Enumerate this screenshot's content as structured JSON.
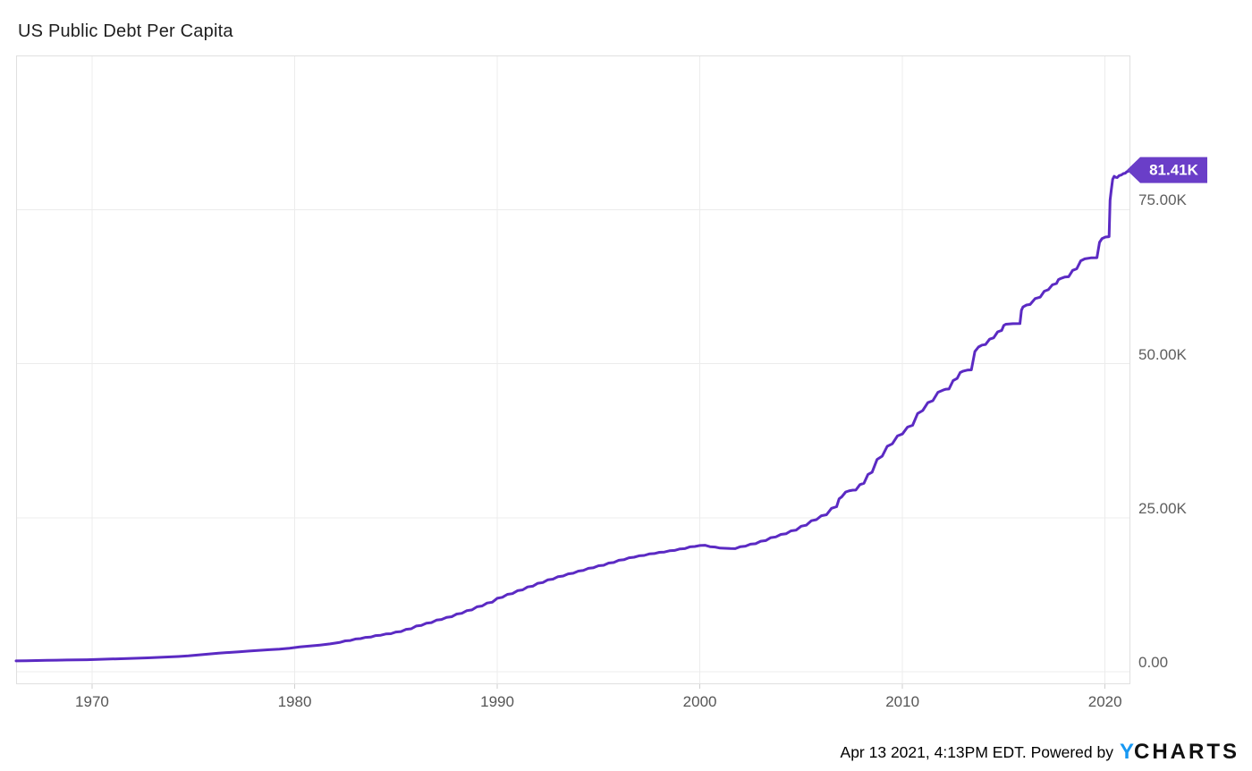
{
  "page": {
    "title": "US Public Debt Per Capita"
  },
  "footer": {
    "timestamp_text": "Apr 13 2021, 4:13PM EDT. Powered by",
    "logo": {
      "y": "Y",
      "charts": "CHARTS"
    }
  },
  "colors": {
    "line": "#5b2ac3",
    "badge": "#6a3ec8",
    "badge_text": "#ffffff",
    "logo_blue": "#1898f2",
    "grid": "#ececec",
    "axis_border": "#e0e0e0",
    "tick_mark": "#cfcfcf",
    "title_text": "#1f1f1f",
    "axis_text": "#5e5e5e"
  },
  "chart_data": {
    "type": "line",
    "title": "US Public Debt Per Capita",
    "xlabel": "",
    "ylabel": "",
    "legend": false,
    "grid": true,
    "x_range": [
      1966.25,
      2021.25
    ],
    "y_range": [
      -2,
      100
    ],
    "y_unit": "K",
    "x_ticks": [
      {
        "value": 1970,
        "label": "1970"
      },
      {
        "value": 1980,
        "label": "1980"
      },
      {
        "value": 1990,
        "label": "1990"
      },
      {
        "value": 2000,
        "label": "2000"
      },
      {
        "value": 2010,
        "label": "2010"
      },
      {
        "value": 2020,
        "label": "2020"
      }
    ],
    "y_ticks": [
      {
        "value": 0,
        "label": "0.00"
      },
      {
        "value": 25,
        "label": "25.00K"
      },
      {
        "value": 50,
        "label": "50.00K"
      },
      {
        "value": 75,
        "label": "75.00K"
      }
    ],
    "last_value_label": "81.41K",
    "series": [
      {
        "name": "US Public Debt Per Capita",
        "color": "#5b2ac3",
        "points": [
          [
            1966.25,
            1.79
          ],
          [
            1966.75,
            1.82
          ],
          [
            1967.25,
            1.84
          ],
          [
            1967.75,
            1.87
          ],
          [
            1968.25,
            1.9
          ],
          [
            1968.75,
            1.93
          ],
          [
            1969.25,
            1.95
          ],
          [
            1969.75,
            1.98
          ],
          [
            1970.25,
            2.02
          ],
          [
            1970.75,
            2.08
          ],
          [
            1971.25,
            2.12
          ],
          [
            1971.75,
            2.18
          ],
          [
            1972.25,
            2.22
          ],
          [
            1972.75,
            2.28
          ],
          [
            1973.25,
            2.35
          ],
          [
            1973.75,
            2.42
          ],
          [
            1974.25,
            2.5
          ],
          [
            1974.75,
            2.6
          ],
          [
            1975.25,
            2.75
          ],
          [
            1975.75,
            2.9
          ],
          [
            1976.25,
            3.05
          ],
          [
            1976.75,
            3.15
          ],
          [
            1977.25,
            3.25
          ],
          [
            1977.75,
            3.38
          ],
          [
            1978.25,
            3.5
          ],
          [
            1978.75,
            3.6
          ],
          [
            1979.25,
            3.7
          ],
          [
            1979.75,
            3.85
          ],
          [
            1980.25,
            4.05
          ],
          [
            1980.75,
            4.2
          ],
          [
            1981.25,
            4.35
          ],
          [
            1981.75,
            4.55
          ],
          [
            1982.25,
            4.8
          ],
          [
            1982.75,
            5.1
          ],
          [
            1983.25,
            5.4
          ],
          [
            1983.75,
            5.65
          ],
          [
            1984.25,
            5.95
          ],
          [
            1984.75,
            6.2
          ],
          [
            1985.25,
            6.55
          ],
          [
            1985.75,
            7.0
          ],
          [
            1986.25,
            7.55
          ],
          [
            1986.75,
            8.0
          ],
          [
            1987.25,
            8.5
          ],
          [
            1987.75,
            8.95
          ],
          [
            1988.25,
            9.5
          ],
          [
            1988.75,
            10.05
          ],
          [
            1989.25,
            10.7
          ],
          [
            1989.75,
            11.3
          ],
          [
            1990.25,
            12.1
          ],
          [
            1990.75,
            12.7
          ],
          [
            1991.25,
            13.3
          ],
          [
            1991.75,
            13.9
          ],
          [
            1992.25,
            14.5
          ],
          [
            1992.75,
            15.05
          ],
          [
            1993.25,
            15.55
          ],
          [
            1993.75,
            16.0
          ],
          [
            1994.25,
            16.45
          ],
          [
            1994.75,
            16.9
          ],
          [
            1995.25,
            17.3
          ],
          [
            1995.75,
            17.75
          ],
          [
            1996.25,
            18.2
          ],
          [
            1996.75,
            18.6
          ],
          [
            1997.25,
            18.9
          ],
          [
            1997.75,
            19.2
          ],
          [
            1998.25,
            19.45
          ],
          [
            1998.75,
            19.7
          ],
          [
            1999.25,
            20.0
          ],
          [
            1999.75,
            20.35
          ],
          [
            2000.25,
            20.55
          ],
          [
            2000.75,
            20.25
          ],
          [
            2001.25,
            20.05
          ],
          [
            2001.75,
            20.0
          ],
          [
            2002.25,
            20.4
          ],
          [
            2002.75,
            20.8
          ],
          [
            2003.25,
            21.3
          ],
          [
            2003.75,
            21.9
          ],
          [
            2004.25,
            22.4
          ],
          [
            2004.75,
            23.0
          ],
          [
            2005.25,
            23.8
          ],
          [
            2005.75,
            24.7
          ],
          [
            2006.25,
            25.5
          ],
          [
            2006.75,
            26.8
          ],
          [
            2007.0,
            28.4
          ],
          [
            2007.4,
            29.4
          ],
          [
            2007.7,
            29.5
          ],
          [
            2008.1,
            30.6
          ],
          [
            2008.5,
            32.4
          ],
          [
            2009.0,
            35.0
          ],
          [
            2009.5,
            37.0
          ],
          [
            2010.0,
            38.6
          ],
          [
            2010.5,
            40.0
          ],
          [
            2011.0,
            42.4
          ],
          [
            2011.5,
            44.0
          ],
          [
            2012.0,
            45.7
          ],
          [
            2012.3,
            45.9
          ],
          [
            2012.7,
            47.6
          ],
          [
            2013.0,
            48.8
          ],
          [
            2013.4,
            49.0
          ],
          [
            2013.75,
            52.7
          ],
          [
            2014.1,
            53.1
          ],
          [
            2014.5,
            54.2
          ],
          [
            2014.9,
            55.4
          ],
          [
            2015.1,
            56.4
          ],
          [
            2015.8,
            56.5
          ],
          [
            2015.95,
            59.2
          ],
          [
            2016.3,
            59.6
          ],
          [
            2016.8,
            60.8
          ],
          [
            2017.2,
            62.0
          ],
          [
            2017.6,
            63.0
          ],
          [
            2017.8,
            63.8
          ],
          [
            2018.2,
            64.1
          ],
          [
            2018.6,
            65.4
          ],
          [
            2019.0,
            67.0
          ],
          [
            2019.6,
            67.2
          ],
          [
            2019.85,
            70.3
          ],
          [
            2020.2,
            70.6
          ],
          [
            2020.3,
            78.0
          ],
          [
            2020.45,
            80.4
          ],
          [
            2020.6,
            80.2
          ],
          [
            2020.8,
            80.6
          ],
          [
            2021.0,
            80.9
          ],
          [
            2021.15,
            81.2
          ],
          [
            2021.25,
            81.41
          ]
        ]
      }
    ]
  }
}
